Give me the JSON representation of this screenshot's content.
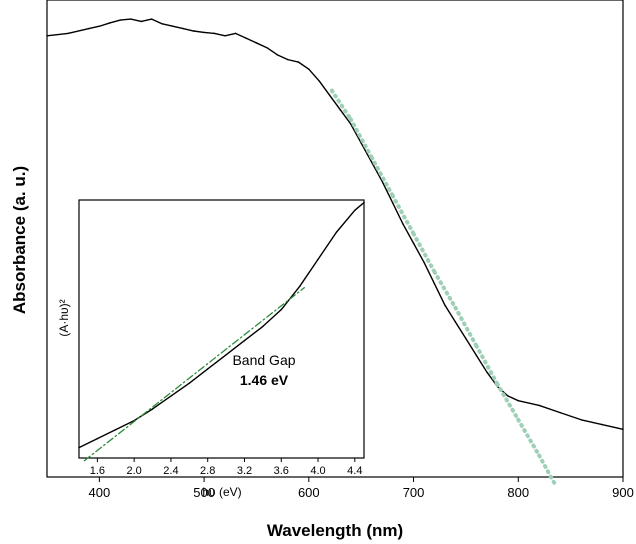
{
  "chart_data": [
    {
      "type": "line",
      "xlabel": "Wavelength (nm)",
      "ylabel": "Absorbance (a. u.)",
      "xlim": [
        350,
        900
      ],
      "ylim": [
        0,
        1
      ],
      "xticks": [
        "400",
        "500",
        "600",
        "700",
        "800",
        "900"
      ],
      "yticks_shown": false,
      "grid": false,
      "series": [
        {
          "color": "#000000",
          "x": [
            350,
            370,
            390,
            400,
            410,
            420,
            430,
            440,
            450,
            460,
            470,
            480,
            490,
            500,
            510,
            520,
            530,
            540,
            550,
            560,
            570,
            580,
            590,
            600,
            610,
            620,
            630,
            640,
            650,
            660,
            670,
            680,
            690,
            700,
            710,
            720,
            730,
            740,
            750,
            760,
            770,
            780,
            790,
            800,
            820,
            840,
            860,
            880,
            900
          ],
          "values": [
            0.925,
            0.93,
            0.94,
            0.945,
            0.952,
            0.958,
            0.96,
            0.955,
            0.96,
            0.95,
            0.945,
            0.94,
            0.935,
            0.932,
            0.93,
            0.925,
            0.93,
            0.92,
            0.91,
            0.9,
            0.885,
            0.875,
            0.87,
            0.855,
            0.83,
            0.8,
            0.77,
            0.74,
            0.7,
            0.66,
            0.62,
            0.575,
            0.53,
            0.49,
            0.45,
            0.405,
            0.36,
            0.325,
            0.29,
            0.255,
            0.22,
            0.19,
            0.17,
            0.16,
            0.15,
            0.135,
            0.12,
            0.11,
            0.1
          ]
        },
        {
          "color": "#9ecfb7",
          "style": "dotted",
          "x": [
            622,
            640,
            660,
            680,
            700,
            720,
            740,
            760,
            780,
            800,
            820,
            835
          ],
          "values": [
            0.81,
            0.75,
            0.67,
            0.59,
            0.51,
            0.43,
            0.355,
            0.275,
            0.195,
            0.12,
            0.045,
            -0.015
          ]
        }
      ]
    },
    {
      "type": "line",
      "xlabel": "hυ (eV)",
      "ylabel": "(A·hυ)²",
      "xlim": [
        1.4,
        4.5
      ],
      "ylim": [
        0,
        1
      ],
      "xticks": [
        "1.6",
        "2.0",
        "2.4",
        "2.8",
        "3.2",
        "3.6",
        "4.0",
        "4.4"
      ],
      "annotations": [
        "Band Gap",
        "1.46 eV"
      ],
      "series": [
        {
          "color": "#000000",
          "x": [
            1.4,
            1.6,
            1.8,
            2.0,
            2.2,
            2.4,
            2.6,
            2.8,
            3.0,
            3.2,
            3.4,
            3.6,
            3.8,
            4.0,
            4.2,
            4.4,
            4.5
          ],
          "values": [
            0.04,
            0.075,
            0.11,
            0.145,
            0.19,
            0.24,
            0.29,
            0.345,
            0.4,
            0.455,
            0.51,
            0.575,
            0.665,
            0.77,
            0.875,
            0.96,
            0.99
          ]
        },
        {
          "color": "#2e8b3a",
          "style": "dash-dot",
          "x": [
            1.46,
            3.85
          ],
          "values": [
            -0.01,
            0.66
          ]
        }
      ]
    }
  ]
}
